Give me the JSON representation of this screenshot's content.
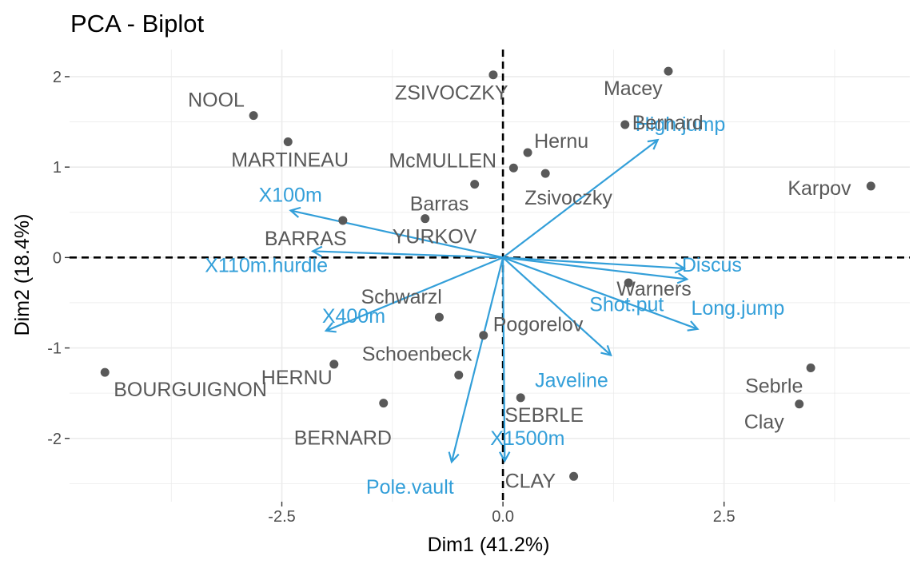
{
  "chart_data": {
    "type": "scatter",
    "title": "PCA - Biplot",
    "xlabel": "Dim1 (41.2%)",
    "ylabel": "Dim2 (18.4%)",
    "xlim": [
      -4.9,
      4.6
    ],
    "ylim": [
      -2.7,
      2.3
    ],
    "x_ticks": [
      -2.5,
      0.0,
      2.5
    ],
    "y_ticks": [
      -2,
      -1,
      0,
      1,
      2
    ],
    "x_tick_labels": [
      "-2.5",
      "0.0",
      "2.5"
    ],
    "y_tick_labels": [
      "-2",
      "-1",
      "0",
      "1",
      "2"
    ],
    "grid": true,
    "colors": {
      "individuals": "#595959",
      "variables": "#339fd9",
      "grid": "#ebebeb"
    },
    "individuals": [
      {
        "name": "SEBRLE",
        "x": 0.2,
        "y": -1.55
      },
      {
        "name": "CLAY",
        "x": 0.8,
        "y": -2.42
      },
      {
        "name": "BERNARD",
        "x": -1.35,
        "y": -1.61
      },
      {
        "name": "YURKOV",
        "x": -0.88,
        "y": 0.43
      },
      {
        "name": "ZSIVOCZKY",
        "x": -0.11,
        "y": 2.02
      },
      {
        "name": "McMULLEN",
        "x": 0.12,
        "y": 0.99
      },
      {
        "name": "MARTINEAU",
        "x": -2.43,
        "y": 1.28
      },
      {
        "name": "HERNU",
        "x": -1.91,
        "y": -1.18
      },
      {
        "name": "BARRAS",
        "x": -1.81,
        "y": 0.41
      },
      {
        "name": "NOOL",
        "x": -2.82,
        "y": 1.57
      },
      {
        "name": "BOURGUIGNON",
        "x": -4.5,
        "y": -1.27
      },
      {
        "name": "Sebrle",
        "x": 3.48,
        "y": -1.22
      },
      {
        "name": "Clay",
        "x": 3.35,
        "y": -1.62
      },
      {
        "name": "Karpov",
        "x": 4.16,
        "y": 0.79
      },
      {
        "name": "Macey",
        "x": 1.87,
        "y": 2.06
      },
      {
        "name": "Warners",
        "x": 1.42,
        "y": -0.28
      },
      {
        "name": "Zsivoczky",
        "x": 0.48,
        "y": 0.93
      },
      {
        "name": "Hernu",
        "x": 0.28,
        "y": 1.16
      },
      {
        "name": "Bernard",
        "x": 1.38,
        "y": 1.47
      },
      {
        "name": "Schwarzl",
        "x": -0.72,
        "y": -0.66
      },
      {
        "name": "Pogorelov",
        "x": -0.22,
        "y": -0.86
      },
      {
        "name": "Schoenbeck",
        "x": -0.5,
        "y": -1.3
      },
      {
        "name": "Barras",
        "x": -0.32,
        "y": 0.81
      }
    ],
    "variables": [
      {
        "name": "X100m",
        "x": -2.4,
        "y": 0.52
      },
      {
        "name": "X110m.hurdle",
        "x": -2.15,
        "y": 0.07
      },
      {
        "name": "X400m",
        "x": -2.0,
        "y": -0.81
      },
      {
        "name": "High.jump",
        "x": 1.75,
        "y": 1.3
      },
      {
        "name": "Discus",
        "x": 2.05,
        "y": -0.12
      },
      {
        "name": "Shot.put",
        "x": 2.08,
        "y": -0.24
      },
      {
        "name": "Long.jump",
        "x": 2.2,
        "y": -0.79
      },
      {
        "name": "Javeline",
        "x": 1.22,
        "y": -1.08
      },
      {
        "name": "Pole.vault",
        "x": -0.58,
        "y": -2.26
      },
      {
        "name": "X1500m",
        "x": 0.02,
        "y": -2.25
      }
    ]
  }
}
